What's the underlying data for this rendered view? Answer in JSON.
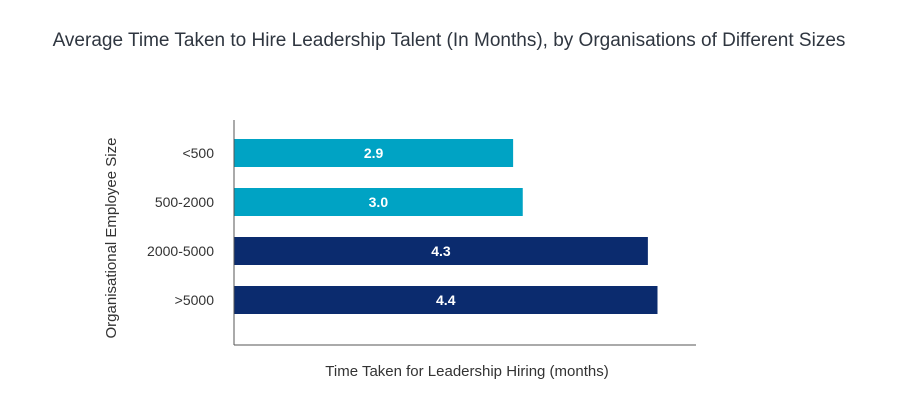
{
  "chart_data": {
    "type": "bar",
    "orientation": "horizontal",
    "title": "Average Time Taken to Hire Leadership Talent (In Months), by Organisations of Different Sizes",
    "xlabel": "Time Taken for Leadership Hiring (months)",
    "ylabel": "Organisational Employee Size",
    "categories": [
      "<500",
      "500-2000",
      "2000-5000",
      ">5000"
    ],
    "values": [
      2.9,
      3.0,
      4.3,
      4.4
    ],
    "value_labels": [
      "2.9",
      "3.0",
      "4.3",
      "4.4"
    ],
    "bar_colors": [
      "#00a3c4",
      "#00a3c4",
      "#0b2b6e",
      "#0b2b6e"
    ],
    "xlim": [
      0,
      4.8
    ],
    "grid": false,
    "legend": "none"
  }
}
